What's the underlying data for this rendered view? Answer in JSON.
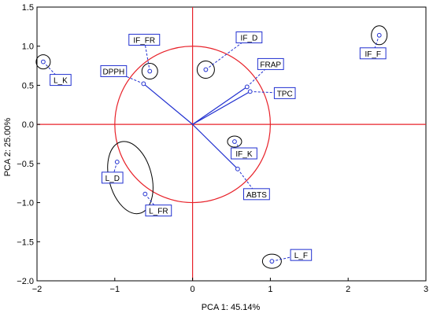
{
  "chart_data": {
    "type": "scatter",
    "title": "",
    "xlabel": "PCA 1: 45.14%",
    "ylabel": "PCA 2: 25.00%",
    "xlim": [
      -2,
      3
    ],
    "ylim": [
      -2.0,
      1.5
    ],
    "x_ticks": [
      "−2",
      "−1",
      "0",
      "1",
      "2",
      "3"
    ],
    "y_ticks": [
      "1.5",
      "1.0",
      "0.5",
      "0.0",
      "−0.5",
      "−1.0",
      "−1.5",
      "−2.0"
    ],
    "grid": false,
    "colors": {
      "reference": "#e8222a",
      "vectors": "#2130d0",
      "points": "#2130d0",
      "label_border": "#2130d0",
      "ellipse": "#000000"
    },
    "unit_circle": {
      "center": [
        0,
        0
      ],
      "radius": 1.0
    },
    "variables": [
      {
        "name": "DPPH",
        "x": -0.63,
        "y": 0.52
      },
      {
        "name": "FRAP",
        "x": 0.7,
        "y": 0.48
      },
      {
        "name": "TPC",
        "x": 0.74,
        "y": 0.42
      },
      {
        "name": "ABTS",
        "x": 0.58,
        "y": -0.57
      }
    ],
    "samples": [
      {
        "name": "L_K",
        "x": -1.92,
        "y": 0.8
      },
      {
        "name": "IF_FR",
        "x": -0.55,
        "y": 0.68
      },
      {
        "name": "IF_D",
        "x": 0.17,
        "y": 0.7
      },
      {
        "name": "IF_F",
        "x": 2.4,
        "y": 1.14
      },
      {
        "name": "IF_K",
        "x": 0.54,
        "y": -0.22
      },
      {
        "name": "L_D",
        "x": -0.97,
        "y": -0.48
      },
      {
        "name": "L_FR",
        "x": -0.61,
        "y": -0.89
      },
      {
        "name": "L_F",
        "x": 1.02,
        "y": -1.75
      }
    ]
  }
}
